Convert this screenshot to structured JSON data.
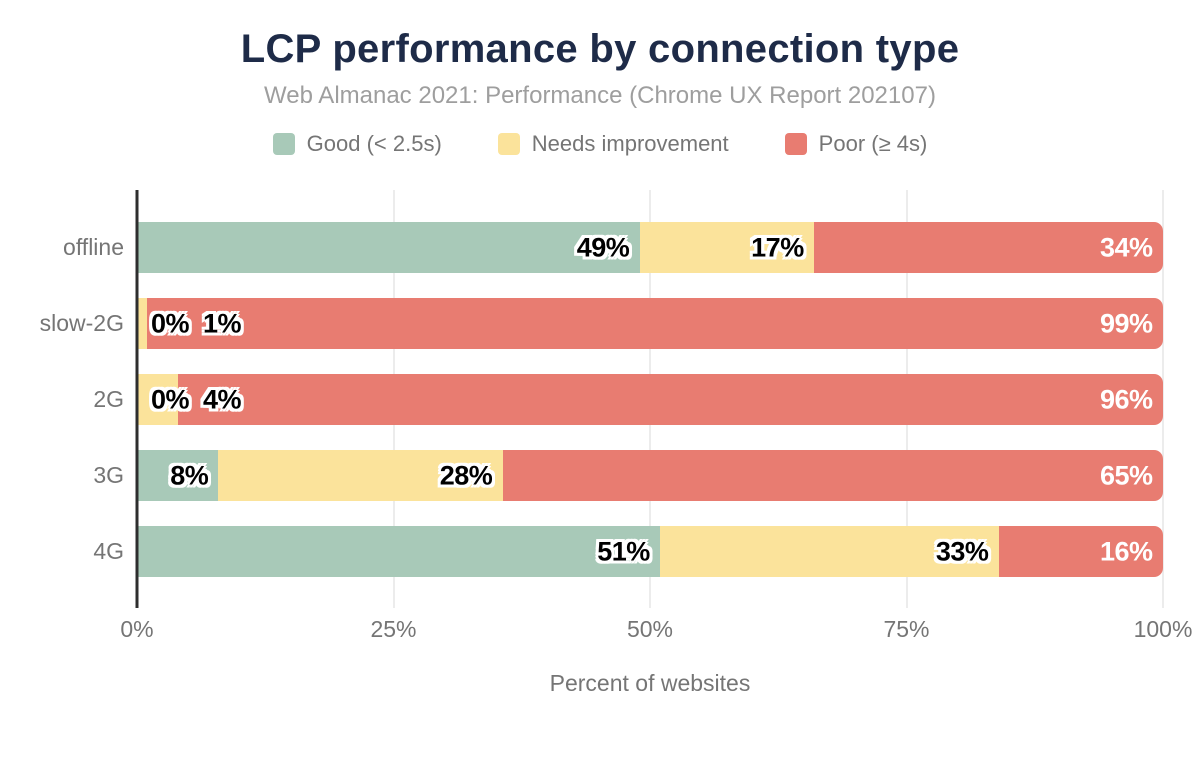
{
  "chart_data": {
    "type": "bar",
    "orientation": "horizontal",
    "stacked": true,
    "title": "LCP performance by connection type",
    "subtitle": "Web Almanac 2021: Performance (Chrome UX Report 202107)",
    "categories": [
      "offline",
      "slow-2G",
      "2G",
      "3G",
      "4G"
    ],
    "series": [
      {
        "name": "Good (< 2.5s)",
        "color": "#a8c9b8",
        "label_color": "#000000",
        "values": [
          49,
          0,
          0,
          8,
          51
        ]
      },
      {
        "name": "Needs improvement",
        "color": "#fbe39b",
        "label_color": "#000000",
        "values": [
          17,
          1,
          4,
          28,
          33
        ]
      },
      {
        "name": "Poor (≥ 4s)",
        "color": "#e87c71",
        "label_color": "#ffffff",
        "values": [
          34,
          99,
          96,
          65,
          16
        ]
      }
    ],
    "data_label_suffix": "%",
    "xlabel": "Percent of websites",
    "x_ticks": [
      "0%",
      "25%",
      "50%",
      "75%",
      "100%"
    ],
    "xlim": [
      0,
      100
    ],
    "grid": "vertical",
    "legend_position": "top",
    "colors": {
      "title": "#1e2b48",
      "subtitle": "#9e9e9e",
      "axis_text": "#757575",
      "axis_line": "#2e2e2e",
      "gridline": "#ececec",
      "background": "#ffffff"
    }
  }
}
